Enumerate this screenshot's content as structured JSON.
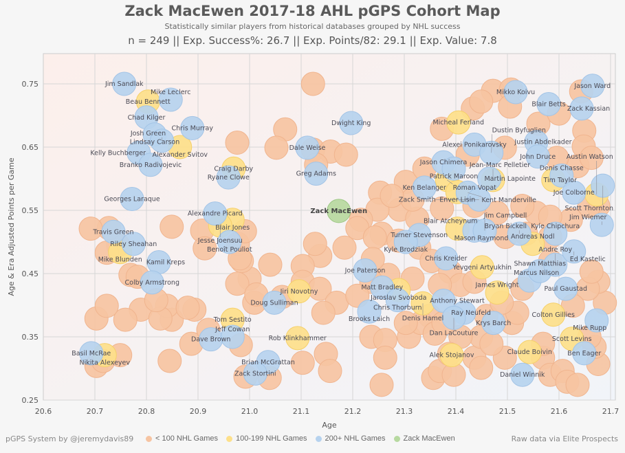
{
  "header": {
    "title": "Zack MacEwen 2017-18 AHL pGPS Cohort Map",
    "subtitle": "Statistically similar players from historical databases grouped by NHL success",
    "stats": "n = 249 || Exp. Success%: 26.7 || Exp. Points/82: 29.1 || Exp. Value: 7.8"
  },
  "footer": {
    "credit": "pGPS System by @jeremydavis89",
    "source": "Raw data via Elite Prospects"
  },
  "colors": {
    "lt100": "#f6c4a2",
    "g100_199": "#fde08a",
    "g200": "#b6d2ee",
    "focus": "#b7d9a0"
  },
  "chart_data": {
    "type": "scatter",
    "title": "Zack MacEwen 2017-18 AHL pGPS Cohort Map",
    "xlabel": "Age",
    "ylabel": "Age & Era Adjusted Points per Game",
    "xlim": [
      20.6,
      21.7
    ],
    "ylim": [
      0.25,
      0.79
    ],
    "xticks": [
      "20.6",
      "20.7",
      "20.8",
      "20.9",
      "21.0",
      "21.1",
      "21.2",
      "21.3",
      "21.4",
      "21.5",
      "21.6",
      "21.7"
    ],
    "yticks": [
      "0.25",
      "0.35",
      "0.45",
      "0.55",
      "0.65",
      "0.75"
    ],
    "grid": true,
    "legend": {
      "placement": "bottom",
      "entries": [
        {
          "key": "lt100",
          "label": "< 100 NHL Games"
        },
        {
          "key": "g100_199",
          "label": "100-199 NHL Games"
        },
        {
          "key": "g200",
          "label": "200+ NHL Games"
        },
        {
          "key": "focus",
          "label": "Zack MacEwen"
        }
      ]
    },
    "unlabeled_lt100": [
      [
        21.123,
        0.75
      ],
      [
        21.472,
        0.739
      ],
      [
        21.507,
        0.741
      ],
      [
        21.505,
        0.714
      ],
      [
        21.643,
        0.738
      ],
      [
        21.649,
        0.676
      ],
      [
        21.648,
        0.651
      ],
      [
        21.636,
        0.62
      ],
      [
        21.433,
        0.711
      ],
      [
        21.373,
        0.679
      ],
      [
        21.449,
        0.722
      ],
      [
        20.976,
        0.657
      ],
      [
        21.069,
        0.678
      ],
      [
        21.052,
        0.649
      ],
      [
        21.123,
        0.646
      ],
      [
        21.157,
        0.643
      ],
      [
        21.187,
        0.638
      ],
      [
        21.129,
        0.622
      ],
      [
        21.253,
        0.578
      ],
      [
        21.303,
        0.595
      ],
      [
        21.291,
        0.551
      ],
      [
        21.325,
        0.537
      ],
      [
        21.248,
        0.551
      ],
      [
        21.216,
        0.535
      ],
      [
        21.209,
        0.522
      ],
      [
        21.256,
        0.513
      ],
      [
        21.243,
        0.507
      ],
      [
        21.289,
        0.502
      ],
      [
        21.329,
        0.491
      ],
      [
        21.353,
        0.47
      ],
      [
        21.389,
        0.453
      ],
      [
        21.409,
        0.432
      ],
      [
        21.369,
        0.432
      ],
      [
        21.316,
        0.442
      ],
      [
        21.269,
        0.448
      ],
      [
        21.239,
        0.473
      ],
      [
        21.184,
        0.491
      ],
      [
        21.137,
        0.478
      ],
      [
        21.127,
        0.497
      ],
      [
        21.103,
        0.462
      ],
      [
        21.103,
        0.437
      ],
      [
        21.136,
        0.426
      ],
      [
        21.169,
        0.404
      ],
      [
        21.143,
        0.388
      ],
      [
        21.063,
        0.413
      ],
      [
        21.009,
        0.404
      ],
      [
        21.0,
        0.442
      ],
      [
        20.976,
        0.434
      ],
      [
        20.985,
        0.47
      ],
      [
        20.977,
        0.497
      ],
      [
        20.991,
        0.517
      ],
      [
        20.981,
        0.474
      ],
      [
        20.849,
        0.377
      ],
      [
        20.84,
        0.399
      ],
      [
        20.893,
        0.393
      ],
      [
        20.908,
        0.518
      ],
      [
        20.913,
        0.49
      ],
      [
        20.789,
        0.393
      ],
      [
        20.849,
        0.524
      ],
      [
        20.759,
        0.377
      ],
      [
        20.769,
        0.448
      ],
      [
        20.745,
        0.495
      ],
      [
        20.727,
        0.522
      ],
      [
        20.703,
        0.379
      ],
      [
        20.723,
        0.399
      ],
      [
        20.703,
        0.304
      ],
      [
        20.716,
        0.312
      ],
      [
        20.749,
        0.321
      ],
      [
        20.845,
        0.312
      ],
      [
        20.887,
        0.339
      ],
      [
        20.983,
        0.337
      ],
      [
        20.92,
        0.361
      ],
      [
        20.992,
        0.287
      ],
      [
        21.039,
        0.285
      ],
      [
        21.103,
        0.309
      ],
      [
        21.04,
        0.464
      ],
      [
        21.013,
        0.417
      ],
      [
        20.88,
        0.396
      ],
      [
        20.827,
        0.379
      ],
      [
        20.819,
        0.408
      ],
      [
        20.783,
        0.445
      ],
      [
        20.723,
        0.483
      ],
      [
        20.692,
        0.521
      ],
      [
        21.148,
        0.323
      ],
      [
        21.156,
        0.296
      ],
      [
        21.236,
        0.35
      ],
      [
        21.263,
        0.345
      ],
      [
        21.309,
        0.35
      ],
      [
        21.263,
        0.317
      ],
      [
        21.256,
        0.274
      ],
      [
        21.356,
        0.285
      ],
      [
        21.369,
        0.296
      ],
      [
        21.436,
        0.317
      ],
      [
        21.396,
        0.29
      ],
      [
        21.449,
        0.301
      ],
      [
        21.495,
        0.317
      ],
      [
        21.509,
        0.372
      ],
      [
        21.519,
        0.388
      ],
      [
        21.529,
        0.426
      ],
      [
        21.569,
        0.317
      ],
      [
        21.569,
        0.339
      ],
      [
        21.583,
        0.29
      ],
      [
        21.607,
        0.296
      ],
      [
        21.616,
        0.279
      ],
      [
        21.636,
        0.274
      ],
      [
        21.676,
        0.307
      ],
      [
        21.669,
        0.334
      ],
      [
        21.659,
        0.35
      ],
      [
        21.689,
        0.404
      ],
      [
        21.676,
        0.437
      ],
      [
        21.656,
        0.426
      ],
      [
        21.663,
        0.453
      ],
      [
        21.627,
        0.399
      ],
      [
        21.583,
        0.47
      ],
      [
        21.583,
        0.508
      ],
      [
        21.623,
        0.535
      ],
      [
        21.556,
        0.546
      ],
      [
        21.529,
        0.557
      ],
      [
        21.583,
        0.54
      ],
      [
        21.676,
        0.557
      ],
      [
        21.459,
        0.383
      ],
      [
        21.489,
        0.404
      ],
      [
        21.436,
        0.437
      ],
      [
        21.349,
        0.383
      ],
      [
        21.332,
        0.372
      ],
      [
        21.359,
        0.355
      ],
      [
        21.303,
        0.372
      ],
      [
        21.449,
        0.35
      ],
      [
        21.469,
        0.339
      ],
      [
        21.236,
        0.437
      ],
      [
        21.209,
        0.415
      ],
      [
        21.409,
        0.35
      ],
      [
        21.387,
        0.323
      ],
      [
        21.376,
        0.372
      ],
      [
        21.536,
        0.513
      ],
      [
        21.496,
        0.508
      ],
      [
        21.48,
        0.546
      ],
      [
        21.436,
        0.557
      ],
      [
        21.373,
        0.553
      ],
      [
        21.316,
        0.567
      ],
      [
        21.276,
        0.573
      ],
      [
        21.339,
        0.616
      ],
      [
        21.423,
        0.638
      ],
      [
        21.495,
        0.649
      ],
      [
        21.56,
        0.687
      ],
      [
        21.6,
        0.703
      ],
      [
        21.663,
        0.633
      ],
      [
        21.596,
        0.633
      ],
      [
        21.659,
        0.557
      ]
    ],
    "players": [
      {
        "name": "Jim Sandlak",
        "group": "g200",
        "x": 20.757,
        "y": 0.75
      },
      {
        "name": "Beau Bennett",
        "group": "g100_199",
        "x": 20.803,
        "y": 0.722
      },
      {
        "name": "Mike Leclerc",
        "group": "g200",
        "x": 20.847,
        "y": 0.725
      },
      {
        "name": "Chad Kilger",
        "group": "g200",
        "x": 20.8,
        "y": 0.697
      },
      {
        "name": "Chris Murray",
        "group": "g200",
        "x": 20.889,
        "y": 0.68
      },
      {
        "name": "Lindsay Carson",
        "group": "g200",
        "x": 20.816,
        "y": 0.67
      },
      {
        "name": "Josh Green",
        "group": "g200",
        "x": 20.83,
        "y": 0.66
      },
      {
        "name": "Alexander Svitov",
        "group": "g100_199",
        "x": 20.865,
        "y": 0.65
      },
      {
        "name": "Kelly Buchberger",
        "group": "g200",
        "x": 20.785,
        "y": 0.641
      },
      {
        "name": "Branko Radivojevic",
        "group": "g200",
        "x": 20.808,
        "y": 0.622
      },
      {
        "name": "Georges Laraque",
        "group": "g200",
        "x": 20.772,
        "y": 0.568
      },
      {
        "name": "Craig Darby",
        "group": "g100_199",
        "x": 20.969,
        "y": 0.616
      },
      {
        "name": "Ryane Clowe",
        "group": "g200",
        "x": 20.959,
        "y": 0.602
      },
      {
        "name": "Alexandre Picard",
        "group": "g200",
        "x": 20.933,
        "y": 0.545
      },
      {
        "name": "Blair Jones",
        "group": "g100_199",
        "x": 20.967,
        "y": 0.535
      },
      {
        "name": "Jesse Joensuu",
        "group": "g100_199",
        "x": 20.943,
        "y": 0.526
      },
      {
        "name": "Benoît Pouliot",
        "group": "g200",
        "x": 20.961,
        "y": 0.5
      },
      {
        "name": "Travis Green",
        "group": "g200",
        "x": 20.736,
        "y": 0.516
      },
      {
        "name": "Riley Sheahan",
        "group": "g200",
        "x": 20.775,
        "y": 0.497
      },
      {
        "name": "Mike Blunden",
        "group": "g100_199",
        "x": 20.749,
        "y": 0.484
      },
      {
        "name": "Kamil Kreps",
        "group": "g200",
        "x": 20.824,
        "y": 0.468
      },
      {
        "name": "Colby Armstrong",
        "group": "g200",
        "x": 20.811,
        "y": 0.436
      },
      {
        "name": "Basil McRae",
        "group": "g200",
        "x": 20.693,
        "y": 0.324
      },
      {
        "name": "Nikita Alexeyev",
        "group": "g100_199",
        "x": 20.719,
        "y": 0.321
      },
      {
        "name": "Tom Sestito",
        "group": "g100_199",
        "x": 20.967,
        "y": 0.377
      },
      {
        "name": "Dave Brown",
        "group": "g200",
        "x": 20.925,
        "y": 0.346
      },
      {
        "name": "Jeff Cowan",
        "group": "g200",
        "x": 20.967,
        "y": 0.35
      },
      {
        "name": "Brian McGrattan",
        "group": "g200",
        "x": 21.036,
        "y": 0.31
      },
      {
        "name": "Zack Stortini",
        "group": "g200",
        "x": 21.011,
        "y": 0.292
      },
      {
        "name": "Doug Sulliman",
        "group": "g200",
        "x": 21.048,
        "y": 0.404
      },
      {
        "name": "Jiri Novotny",
        "group": "g100_199",
        "x": 21.096,
        "y": 0.422
      },
      {
        "name": "Rob Klinkhammer",
        "group": "g100_199",
        "x": 21.093,
        "y": 0.348
      },
      {
        "name": "Dale Weise",
        "group": "g200",
        "x": 21.112,
        "y": 0.649
      },
      {
        "name": "Greg Adams",
        "group": "g200",
        "x": 21.129,
        "y": 0.608
      },
      {
        "name": "Dwight King",
        "group": "g200",
        "x": 21.197,
        "y": 0.688
      },
      {
        "name": "Zack MacEwen",
        "group": "focus",
        "x": 21.173,
        "y": 0.549
      },
      {
        "name": "Joe Paterson",
        "group": "g200",
        "x": 21.224,
        "y": 0.455
      },
      {
        "name": "Matt Bradley",
        "group": "g200",
        "x": 21.257,
        "y": 0.428
      },
      {
        "name": "Turner Stevenson",
        "group": "g200",
        "x": 21.329,
        "y": 0.511
      },
      {
        "name": "Kyle Brodziak",
        "group": "g200",
        "x": 21.303,
        "y": 0.5
      },
      {
        "name": "Jaroslav Svoboda",
        "group": "g100_199",
        "x": 21.289,
        "y": 0.424
      },
      {
        "name": "Chris Thorburn",
        "group": "g200",
        "x": 21.287,
        "y": 0.408
      },
      {
        "name": "Brooks Laich",
        "group": "g200",
        "x": 21.232,
        "y": 0.39
      },
      {
        "name": "Denis Hamel",
        "group": "g100_199",
        "x": 21.336,
        "y": 0.403
      },
      {
        "name": "Anthony Stewart",
        "group": "g200",
        "x": 21.376,
        "y": 0.407
      },
      {
        "name": "Ray Neufeld",
        "group": "g200",
        "x": 21.416,
        "y": 0.388
      },
      {
        "name": "Dan LaCouture",
        "group": "g200",
        "x": 21.396,
        "y": 0.38
      },
      {
        "name": "Krys Barch",
        "group": "g200",
        "x": 21.473,
        "y": 0.372
      },
      {
        "name": "Chris Kreider",
        "group": "g200",
        "x": 21.381,
        "y": 0.474
      },
      {
        "name": "Yevgeni Artyukhin",
        "group": "g100_199",
        "x": 21.451,
        "y": 0.46
      },
      {
        "name": "James Wright",
        "group": "g100_199",
        "x": 21.48,
        "y": 0.42
      },
      {
        "name": "Alek Stojanov",
        "group": "g100_199",
        "x": 21.392,
        "y": 0.321
      },
      {
        "name": "Claude Boivin",
        "group": "g100_199",
        "x": 21.543,
        "y": 0.326
      },
      {
        "name": "Daniel Winnik",
        "group": "g200",
        "x": 21.529,
        "y": 0.29
      },
      {
        "name": "Colton Gillies",
        "group": "g100_199",
        "x": 21.589,
        "y": 0.385
      },
      {
        "name": "Scott Levins",
        "group": "g100_199",
        "x": 21.625,
        "y": 0.347
      },
      {
        "name": "Ben Eager",
        "group": "g200",
        "x": 21.649,
        "y": 0.324
      },
      {
        "name": "Mike Rupp",
        "group": "g200",
        "x": 21.673,
        "y": 0.376
      },
      {
        "name": "Paul Gaustad",
        "group": "g200",
        "x": 21.613,
        "y": 0.426
      },
      {
        "name": "Marcus Nilson",
        "group": "g200",
        "x": 21.543,
        "y": 0.439
      },
      {
        "name": "Shawn Matthias",
        "group": "g200",
        "x": 21.563,
        "y": 0.454
      },
      {
        "name": "Andre Roy",
        "group": "g200",
        "x": 21.593,
        "y": 0.464
      },
      {
        "name": "Ed Kastelic",
        "group": "g200",
        "x": 21.629,
        "y": 0.485
      },
      {
        "name": "Andreas Nodl",
        "group": "g100_199",
        "x": 21.549,
        "y": 0.497
      },
      {
        "name": "Kyle Chipchura",
        "group": "g200",
        "x": 21.593,
        "y": 0.513
      },
      {
        "name": "Bryan Bickell",
        "group": "g200",
        "x": 21.523,
        "y": 0.513
      },
      {
        "name": "Jim Wiemer",
        "group": "g200",
        "x": 21.683,
        "y": 0.527
      },
      {
        "name": "Blair Atcheynum",
        "group": "g100_199",
        "x": 21.403,
        "y": 0.521
      },
      {
        "name": "Mason Raymond",
        "group": "g200",
        "x": 21.436,
        "y": 0.518
      },
      {
        "name": "Jim Campbell",
        "group": "g200",
        "x": 21.456,
        "y": 0.518
      },
      {
        "name": "Ken Belanger",
        "group": "g200",
        "x": 21.339,
        "y": 0.586
      },
      {
        "name": "Jason Chimera",
        "group": "g200",
        "x": 21.376,
        "y": 0.626
      },
      {
        "name": "Patrick Maroon",
        "group": "g200",
        "x": 21.396,
        "y": 0.616
      },
      {
        "name": "Roman Vopat",
        "group": "g100_199",
        "x": 21.383,
        "y": 0.598
      },
      {
        "name": "Martin Lapointe",
        "group": "g200",
        "x": 21.465,
        "y": 0.6
      },
      {
        "name": "Jean-Marc Pelletier",
        "group": "g100_199",
        "x": 21.472,
        "y": 0.598
      },
      {
        "name": "Enver Lisin",
        "group": "g100_199",
        "x": 21.403,
        "y": 0.579
      },
      {
        "name": "Kent Manderville",
        "group": "g200",
        "x": 21.423,
        "y": 0.578
      },
      {
        "name": "Zack Smith",
        "group": "g200",
        "x": 21.445,
        "y": 0.567
      },
      {
        "name": "Micheal Ferland",
        "group": "g100_199",
        "x": 21.405,
        "y": 0.689
      },
      {
        "name": "Alexei Ponikarovsky",
        "group": "g200",
        "x": 21.436,
        "y": 0.654
      },
      {
        "name": "Dustin Byfuglien",
        "group": "g200",
        "x": 21.469,
        "y": 0.641
      },
      {
        "name": "Justin Abdelkader",
        "group": "g200",
        "x": 21.556,
        "y": 0.658
      },
      {
        "name": "John Druce",
        "group": "g200",
        "x": 21.559,
        "y": 0.635
      },
      {
        "name": "Mikko Koivu",
        "group": "g200",
        "x": 21.516,
        "y": 0.737
      },
      {
        "name": "Blair Betts",
        "group": "g200",
        "x": 21.58,
        "y": 0.718
      },
      {
        "name": "Zack Kassian",
        "group": "g200",
        "x": 21.644,
        "y": 0.711
      },
      {
        "name": "Jason Ward",
        "group": "g200",
        "x": 21.665,
        "y": 0.747
      },
      {
        "name": "Tim Taylor",
        "group": "g100_199",
        "x": 21.589,
        "y": 0.598
      },
      {
        "name": "Denis Chasse",
        "group": "g200",
        "x": 21.605,
        "y": 0.605
      },
      {
        "name": "Joe Colborne",
        "group": "g200",
        "x": 21.629,
        "y": 0.578
      },
      {
        "name": "Scott Thornton",
        "group": "g200",
        "x": 21.685,
        "y": 0.589
      },
      {
        "name": "Austin Watson",
        "group": "g100_199",
        "x": 21.673,
        "y": 0.575
      }
    ]
  }
}
